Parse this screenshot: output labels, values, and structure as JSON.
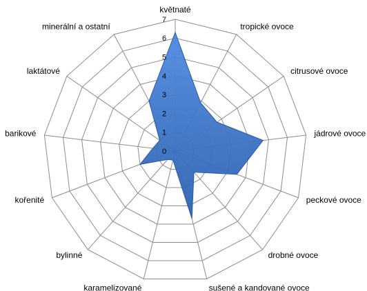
{
  "chart_data": {
    "type": "radar",
    "categories": [
      "květnaté",
      "tropické ovoce",
      "citrusové ovoce",
      "jádrové ovoce",
      "peckové ovoce",
      "drobné ovoce",
      "sušené a kandované ovoce",
      "karamelizované",
      "bylinné",
      "kořenité",
      "barikové",
      "laktátové",
      "minerální a ostatní"
    ],
    "values": [
      6.3,
      2.9,
      2.7,
      4.7,
      3.5,
      1.5,
      3.7,
      0.5,
      0.6,
      2.0,
      1.2,
      1.0,
      3.0
    ],
    "color": "#3b72c4",
    "ylim": [
      0,
      7
    ],
    "yticks": [
      0,
      1,
      2,
      3,
      4,
      5,
      6,
      7
    ],
    "grid": true
  }
}
